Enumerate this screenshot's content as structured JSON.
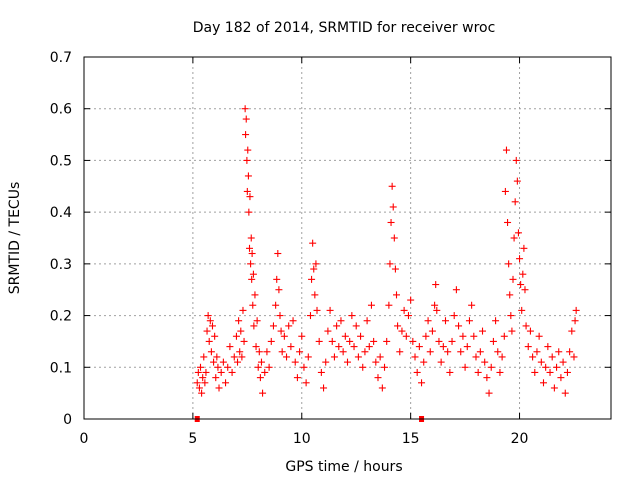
{
  "chart_data": {
    "type": "scatter",
    "title": "Day 182 of 2014, SRMTID for receiver wroc",
    "xlabel": "GPS time / hours",
    "ylabel": "SRMTID / TECUs",
    "xlim": [
      0,
      24.2
    ],
    "ylim": [
      0,
      0.7
    ],
    "x_ticks": [
      0,
      5,
      10,
      15,
      20
    ],
    "y_ticks": [
      0,
      0.1,
      0.2,
      0.3,
      0.4,
      0.5,
      0.6,
      0.7
    ],
    "x_tick_labels": [
      "0",
      "5",
      "10",
      "15",
      "20"
    ],
    "y_tick_labels": [
      "0",
      "0.1",
      "0.2",
      "0.3",
      "0.4",
      "0.5",
      "0.6",
      "0.7"
    ],
    "grid": true,
    "marker": "+",
    "color": "#ff0000",
    "series": [
      {
        "name": "SRMTID",
        "points": [
          [
            5.2,
            0.07
          ],
          [
            5.25,
            0.09
          ],
          [
            5.3,
            0.06
          ],
          [
            5.35,
            0.1
          ],
          [
            5.4,
            0.05
          ],
          [
            5.45,
            0.08
          ],
          [
            5.5,
            0.12
          ],
          [
            5.55,
            0.07
          ],
          [
            5.6,
            0.09
          ],
          [
            5.65,
            0.17
          ],
          [
            5.7,
            0.2
          ],
          [
            5.75,
            0.15
          ],
          [
            5.8,
            0.19
          ],
          [
            5.85,
            0.13
          ],
          [
            5.9,
            0.18
          ],
          [
            5.95,
            0.11
          ],
          [
            6.0,
            0.16
          ],
          [
            6.05,
            0.08
          ],
          [
            6.1,
            0.12
          ],
          [
            6.15,
            0.1
          ],
          [
            6.2,
            0.06
          ],
          [
            6.3,
            0.09
          ],
          [
            6.4,
            0.11
          ],
          [
            6.5,
            0.07
          ],
          [
            6.6,
            0.1
          ],
          [
            6.7,
            0.14
          ],
          [
            6.8,
            0.09
          ],
          [
            6.9,
            0.12
          ],
          [
            7.0,
            0.16
          ],
          [
            7.05,
            0.11
          ],
          [
            7.1,
            0.19
          ],
          [
            7.15,
            0.13
          ],
          [
            7.2,
            0.17
          ],
          [
            7.25,
            0.12
          ],
          [
            7.3,
            0.21
          ],
          [
            7.35,
            0.15
          ],
          [
            7.4,
            0.6
          ],
          [
            7.42,
            0.55
          ],
          [
            7.45,
            0.58
          ],
          [
            7.48,
            0.5
          ],
          [
            7.5,
            0.44
          ],
          [
            7.52,
            0.52
          ],
          [
            7.55,
            0.47
          ],
          [
            7.57,
            0.4
          ],
          [
            7.6,
            0.33
          ],
          [
            7.62,
            0.43
          ],
          [
            7.65,
            0.3
          ],
          [
            7.68,
            0.35
          ],
          [
            7.7,
            0.27
          ],
          [
            7.72,
            0.32
          ],
          [
            7.75,
            0.22
          ],
          [
            7.78,
            0.28
          ],
          [
            7.8,
            0.18
          ],
          [
            7.85,
            0.24
          ],
          [
            7.9,
            0.14
          ],
          [
            7.95,
            0.19
          ],
          [
            8.0,
            0.1
          ],
          [
            8.05,
            0.13
          ],
          [
            8.1,
            0.08
          ],
          [
            8.15,
            0.11
          ],
          [
            8.2,
            0.05
          ],
          [
            8.3,
            0.09
          ],
          [
            8.4,
            0.13
          ],
          [
            8.5,
            0.1
          ],
          [
            8.6,
            0.15
          ],
          [
            8.7,
            0.18
          ],
          [
            8.8,
            0.22
          ],
          [
            8.85,
            0.27
          ],
          [
            8.9,
            0.32
          ],
          [
            8.95,
            0.25
          ],
          [
            9.0,
            0.2
          ],
          [
            9.05,
            0.17
          ],
          [
            9.1,
            0.13
          ],
          [
            9.2,
            0.16
          ],
          [
            9.3,
            0.12
          ],
          [
            9.4,
            0.18
          ],
          [
            9.5,
            0.14
          ],
          [
            9.6,
            0.19
          ],
          [
            9.7,
            0.11
          ],
          [
            9.8,
            0.08
          ],
          [
            9.9,
            0.13
          ],
          [
            10.0,
            0.16
          ],
          [
            10.1,
            0.1
          ],
          [
            10.2,
            0.07
          ],
          [
            10.3,
            0.12
          ],
          [
            10.4,
            0.2
          ],
          [
            10.45,
            0.27
          ],
          [
            10.5,
            0.34
          ],
          [
            10.55,
            0.29
          ],
          [
            10.6,
            0.24
          ],
          [
            10.65,
            0.3
          ],
          [
            10.7,
            0.21
          ],
          [
            10.8,
            0.15
          ],
          [
            10.9,
            0.09
          ],
          [
            11.0,
            0.06
          ],
          [
            11.1,
            0.11
          ],
          [
            11.2,
            0.17
          ],
          [
            11.3,
            0.21
          ],
          [
            11.4,
            0.15
          ],
          [
            11.5,
            0.12
          ],
          [
            11.6,
            0.18
          ],
          [
            11.7,
            0.14
          ],
          [
            11.8,
            0.19
          ],
          [
            11.9,
            0.13
          ],
          [
            12.0,
            0.16
          ],
          [
            12.1,
            0.11
          ],
          [
            12.2,
            0.15
          ],
          [
            12.3,
            0.2
          ],
          [
            12.4,
            0.14
          ],
          [
            12.5,
            0.18
          ],
          [
            12.6,
            0.12
          ],
          [
            12.7,
            0.16
          ],
          [
            12.8,
            0.1
          ],
          [
            12.9,
            0.13
          ],
          [
            13.0,
            0.19
          ],
          [
            13.1,
            0.14
          ],
          [
            13.2,
            0.22
          ],
          [
            13.3,
            0.15
          ],
          [
            13.4,
            0.11
          ],
          [
            13.5,
            0.08
          ],
          [
            13.6,
            0.12
          ],
          [
            13.7,
            0.06
          ],
          [
            13.8,
            0.1
          ],
          [
            13.9,
            0.15
          ],
          [
            14.0,
            0.22
          ],
          [
            14.05,
            0.3
          ],
          [
            14.1,
            0.38
          ],
          [
            14.15,
            0.45
          ],
          [
            14.2,
            0.41
          ],
          [
            14.25,
            0.35
          ],
          [
            14.3,
            0.29
          ],
          [
            14.35,
            0.24
          ],
          [
            14.4,
            0.18
          ],
          [
            14.5,
            0.13
          ],
          [
            14.6,
            0.17
          ],
          [
            14.7,
            0.21
          ],
          [
            14.8,
            0.16
          ],
          [
            14.9,
            0.2
          ],
          [
            15.0,
            0.23
          ],
          [
            15.1,
            0.15
          ],
          [
            15.2,
            0.12
          ],
          [
            15.3,
            0.09
          ],
          [
            15.4,
            0.14
          ],
          [
            15.5,
            0.07
          ],
          [
            15.6,
            0.11
          ],
          [
            15.7,
            0.16
          ],
          [
            15.8,
            0.19
          ],
          [
            15.9,
            0.13
          ],
          [
            16.0,
            0.17
          ],
          [
            16.1,
            0.22
          ],
          [
            16.15,
            0.26
          ],
          [
            16.2,
            0.21
          ],
          [
            16.3,
            0.15
          ],
          [
            16.4,
            0.11
          ],
          [
            16.5,
            0.14
          ],
          [
            16.6,
            0.19
          ],
          [
            16.7,
            0.13
          ],
          [
            16.8,
            0.09
          ],
          [
            16.9,
            0.15
          ],
          [
            17.0,
            0.2
          ],
          [
            17.1,
            0.25
          ],
          [
            17.2,
            0.18
          ],
          [
            17.3,
            0.13
          ],
          [
            17.4,
            0.16
          ],
          [
            17.5,
            0.1
          ],
          [
            17.6,
            0.14
          ],
          [
            17.7,
            0.19
          ],
          [
            17.8,
            0.22
          ],
          [
            17.9,
            0.16
          ],
          [
            18.0,
            0.12
          ],
          [
            18.1,
            0.09
          ],
          [
            18.2,
            0.13
          ],
          [
            18.3,
            0.17
          ],
          [
            18.4,
            0.11
          ],
          [
            18.5,
            0.08
          ],
          [
            18.6,
            0.05
          ],
          [
            18.7,
            0.1
          ],
          [
            18.8,
            0.15
          ],
          [
            18.9,
            0.19
          ],
          [
            19.0,
            0.13
          ],
          [
            19.1,
            0.09
          ],
          [
            19.2,
            0.12
          ],
          [
            19.3,
            0.16
          ],
          [
            19.35,
            0.44
          ],
          [
            19.4,
            0.52
          ],
          [
            19.45,
            0.38
          ],
          [
            19.5,
            0.3
          ],
          [
            19.55,
            0.24
          ],
          [
            19.6,
            0.2
          ],
          [
            19.65,
            0.17
          ],
          [
            19.7,
            0.27
          ],
          [
            19.75,
            0.35
          ],
          [
            19.8,
            0.42
          ],
          [
            19.85,
            0.5
          ],
          [
            19.9,
            0.46
          ],
          [
            19.95,
            0.36
          ],
          [
            20.0,
            0.31
          ],
          [
            20.05,
            0.26
          ],
          [
            20.1,
            0.21
          ],
          [
            20.15,
            0.28
          ],
          [
            20.2,
            0.33
          ],
          [
            20.25,
            0.25
          ],
          [
            20.3,
            0.18
          ],
          [
            20.4,
            0.14
          ],
          [
            20.5,
            0.17
          ],
          [
            20.6,
            0.12
          ],
          [
            20.7,
            0.09
          ],
          [
            20.8,
            0.13
          ],
          [
            20.9,
            0.16
          ],
          [
            21.0,
            0.11
          ],
          [
            21.1,
            0.07
          ],
          [
            21.2,
            0.1
          ],
          [
            21.3,
            0.14
          ],
          [
            21.4,
            0.09
          ],
          [
            21.5,
            0.12
          ],
          [
            21.6,
            0.06
          ],
          [
            21.7,
            0.1
          ],
          [
            21.8,
            0.13
          ],
          [
            21.9,
            0.08
          ],
          [
            22.0,
            0.11
          ],
          [
            22.1,
            0.05
          ],
          [
            22.2,
            0.09
          ],
          [
            22.3,
            0.13
          ],
          [
            22.4,
            0.17
          ],
          [
            22.5,
            0.12
          ],
          [
            22.55,
            0.19
          ],
          [
            22.6,
            0.21
          ]
        ]
      }
    ],
    "axis_markers_x": [
      5.2,
      15.5
    ]
  }
}
